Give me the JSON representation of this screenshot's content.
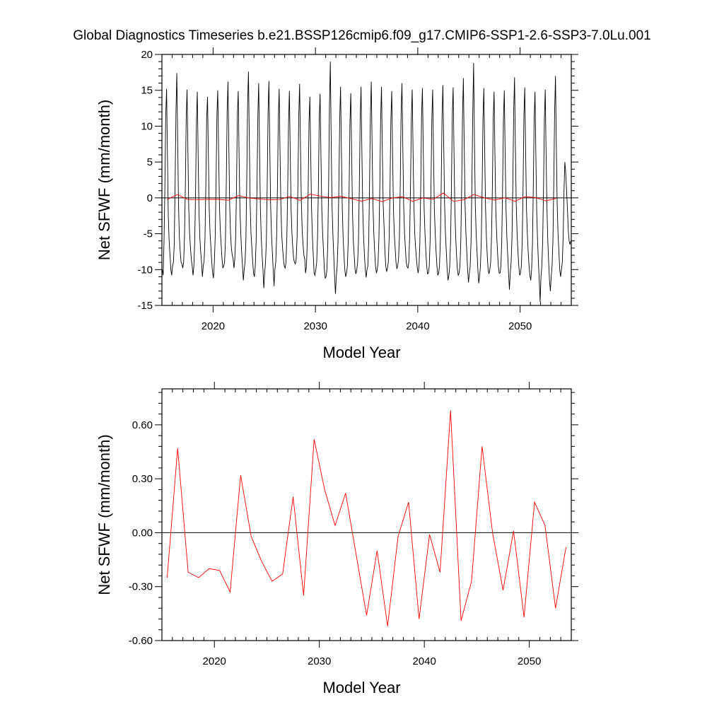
{
  "title": "Global Diagnostics Timeseries b.e21.BSSP126cmip6.f09_g17.CMIP6-SSP1-2.6-SSP3-7.0Lu.001",
  "colors": {
    "monthly": "#000000",
    "annual": "#ff0000",
    "zero_line": "#000000"
  },
  "chart_data": [
    {
      "type": "line",
      "xlabel": "Model Year",
      "ylabel": "Net SFWF (mm/month)",
      "xlim": [
        2015,
        2055
      ],
      "ylim": [
        -15,
        20
      ],
      "x_ticks": [
        2020,
        2030,
        2040,
        2050
      ],
      "x_tick_labels": [
        "2020",
        "2030",
        "2040",
        "2050"
      ],
      "y_ticks": [
        -15,
        -10,
        -5,
        0,
        5,
        10,
        15,
        20
      ],
      "y_tick_labels": [
        "-15",
        "-10",
        "-5",
        "0",
        "5",
        "10",
        "15",
        "20"
      ],
      "grid": false,
      "reference_line_y": 0,
      "series": [
        {
          "style": "monthly",
          "x_start": 2015.04,
          "x_step": 0.083333,
          "values": [
            -10.0,
            -10.8,
            -6.0,
            1.5,
            11.5,
            15.2,
            6.0,
            -2.5,
            -6.0,
            -8.0,
            -10.0,
            -10.8,
            -9.5,
            -9.0,
            -6.5,
            2.0,
            12.0,
            17.4,
            8.0,
            -1.0,
            -5.5,
            -7.5,
            -9.0,
            -9.2,
            -9.8,
            -9.0,
            -5.5,
            1.5,
            11.0,
            15.1,
            6.5,
            -1.5,
            -5.0,
            -7.0,
            -8.5,
            -9.5,
            -10.8,
            -9.5,
            -6.0,
            1.0,
            10.5,
            14.8,
            6.0,
            -2.0,
            -5.5,
            -7.5,
            -9.0,
            -11.0,
            -9.5,
            -8.8,
            -5.8,
            1.5,
            11.0,
            14.1,
            6.0,
            -1.5,
            -5.0,
            -7.0,
            -9.0,
            -10.5,
            -11.2,
            -9.0,
            -5.5,
            2.0,
            11.5,
            15.0,
            6.5,
            -1.0,
            -4.5,
            -6.5,
            -8.5,
            -9.8,
            -9.5,
            -9.0,
            -6.0,
            2.0,
            12.0,
            16.2,
            7.0,
            -1.0,
            -5.0,
            -7.0,
            -8.0,
            -8.5,
            -9.8,
            -8.5,
            -5.5,
            1.5,
            11.5,
            14.9,
            6.0,
            -1.5,
            -5.0,
            -7.5,
            -9.5,
            -11.5,
            -10.0,
            -9.0,
            -6.0,
            2.5,
            13.0,
            17.6,
            8.0,
            -1.0,
            -5.0,
            -7.0,
            -9.0,
            -10.5,
            -11.0,
            -9.5,
            -6.0,
            1.5,
            11.5,
            16.0,
            7.0,
            -1.5,
            -5.5,
            -8.0,
            -10.0,
            -12.6,
            -10.5,
            -9.0,
            -6.0,
            2.0,
            12.0,
            16.3,
            7.0,
            -1.0,
            -5.0,
            -7.5,
            -10.0,
            -12.3,
            -10.0,
            -9.0,
            -5.5,
            1.5,
            11.0,
            15.2,
            6.5,
            -1.0,
            -5.0,
            -7.0,
            -8.5,
            -9.5,
            -9.8,
            -9.0,
            -5.5,
            1.0,
            10.5,
            14.9,
            6.0,
            -1.5,
            -5.0,
            -7.0,
            -8.5,
            -9.0,
            -9.2,
            -8.5,
            -5.5,
            2.0,
            11.5,
            15.9,
            7.0,
            -0.5,
            -4.5,
            -6.5,
            -8.0,
            -8.5,
            -10.5,
            -9.5,
            -6.0,
            1.0,
            10.5,
            14.1,
            6.0,
            -1.5,
            -5.5,
            -8.0,
            -10.5,
            -10.8,
            -10.0,
            -9.0,
            -5.5,
            1.5,
            11.0,
            14.5,
            6.0,
            -1.5,
            -5.0,
            -7.5,
            -10.0,
            -11.2,
            -11.0,
            -10.0,
            -6.5,
            2.0,
            13.0,
            19.0,
            8.0,
            -1.0,
            -5.0,
            -8.0,
            -11.0,
            -13.4,
            -11.0,
            -9.5,
            -6.0,
            1.5,
            11.0,
            15.5,
            6.5,
            -1.5,
            -5.5,
            -8.0,
            -10.0,
            -11.0,
            -10.5,
            -9.5,
            -6.0,
            1.0,
            10.5,
            14.6,
            6.0,
            -2.0,
            -6.0,
            -8.0,
            -10.0,
            -10.6,
            -10.0,
            -9.0,
            -6.0,
            1.5,
            11.0,
            15.5,
            6.5,
            -1.5,
            -5.5,
            -8.0,
            -10.0,
            -11.1,
            -10.0,
            -9.5,
            -6.0,
            2.0,
            11.5,
            16.2,
            7.0,
            -1.0,
            -5.0,
            -7.5,
            -9.5,
            -10.5,
            -10.0,
            -9.0,
            -5.5,
            1.5,
            11.0,
            15.5,
            6.5,
            -1.0,
            -4.0,
            -7.5,
            -9.5,
            -10.3,
            -9.8,
            -9.0,
            -5.5,
            1.5,
            11.0,
            14.9,
            6.0,
            -1.5,
            -5.0,
            -7.0,
            -9.0,
            -9.9,
            -9.5,
            -8.5,
            -5.5,
            2.0,
            12.0,
            16.0,
            7.0,
            -1.0,
            -5.0,
            -7.0,
            -9.0,
            -9.6,
            -9.8,
            -9.0,
            -5.5,
            1.5,
            11.0,
            15.1,
            6.5,
            -1.0,
            -5.0,
            -7.0,
            -8.5,
            -9.8,
            -10.5,
            -9.5,
            -6.0,
            1.5,
            11.5,
            15.3,
            6.5,
            -1.5,
            -5.0,
            -7.5,
            -9.5,
            -10.6,
            -10.5,
            -9.5,
            -6.0,
            1.5,
            11.0,
            15.1,
            6.0,
            -1.5,
            -5.0,
            -7.5,
            -9.5,
            -10.8,
            -10.5,
            -9.5,
            -6.0,
            1.5,
            11.5,
            15.7,
            7.0,
            -1.0,
            -5.0,
            -7.5,
            -10.0,
            -11.5,
            -10.8,
            -9.5,
            -6.0,
            1.5,
            11.5,
            15.4,
            6.5,
            -1.5,
            -5.5,
            -8.0,
            -10.0,
            -10.8,
            -10.5,
            -9.5,
            -6.0,
            1.5,
            11.5,
            16.7,
            7.0,
            -1.0,
            -5.0,
            -7.5,
            -10.0,
            -11.8,
            -10.5,
            -9.5,
            -6.0,
            2.0,
            12.0,
            18.8,
            8.0,
            -1.0,
            -5.0,
            -7.5,
            -10.0,
            -11.9,
            -11.0,
            -9.5,
            -6.0,
            1.5,
            11.0,
            15.3,
            6.5,
            -1.5,
            -5.5,
            -8.0,
            -10.0,
            -10.6,
            -10.0,
            -9.0,
            -5.5,
            1.5,
            11.0,
            14.8,
            6.0,
            -1.5,
            -5.0,
            -7.5,
            -9.5,
            -10.5,
            -10.5,
            -9.5,
            -6.0,
            1.5,
            11.0,
            15.0,
            6.0,
            -1.5,
            -5.5,
            -8.0,
            -10.5,
            -12.8,
            -10.5,
            -9.0,
            -5.5,
            2.0,
            12.0,
            16.8,
            7.0,
            -1.0,
            -5.0,
            -7.5,
            -9.5,
            -10.8,
            -10.5,
            -9.5,
            -6.0,
            1.5,
            11.5,
            15.4,
            6.5,
            -1.5,
            -5.0,
            -7.5,
            -9.5,
            -10.8,
            -11.5,
            -10.0,
            -6.5,
            1.5,
            11.0,
            14.8,
            6.0,
            -2.0,
            -6.0,
            -9.0,
            -11.5,
            -14.5,
            -11.0,
            -9.5,
            -6.0,
            1.5,
            11.0,
            15.1,
            6.0,
            -1.5,
            -6.0,
            -9.0,
            -11.5,
            -13.0,
            -11.0,
            -9.5,
            -6.0,
            2.0,
            12.0,
            17.0,
            7.0,
            -1.0,
            -5.0,
            -7.5,
            -10.0,
            -11.0,
            -10.0,
            -9.0,
            -5.5,
            1.0,
            5.0,
            3.5,
            1.0,
            -1.5,
            -4.5,
            -6.0,
            -6.5,
            -6.0
          ]
        },
        {
          "style": "annual",
          "x": [
            2015.5,
            2016.5,
            2017.5,
            2018.5,
            2019.5,
            2020.5,
            2021.5,
            2022.5,
            2023.5,
            2024.5,
            2025.5,
            2026.5,
            2027.5,
            2028.5,
            2029.5,
            2030.5,
            2031.5,
            2032.5,
            2033.5,
            2034.5,
            2035.5,
            2036.5,
            2037.5,
            2038.5,
            2039.5,
            2040.5,
            2041.5,
            2042.5,
            2043.5,
            2044.5,
            2045.5,
            2046.5,
            2047.5,
            2048.5,
            2049.5,
            2050.5,
            2051.5,
            2052.5,
            2053.5
          ],
          "values": [
            -0.25,
            0.47,
            -0.22,
            -0.25,
            -0.2,
            -0.21,
            -0.33,
            0.32,
            -0.02,
            -0.16,
            -0.27,
            -0.23,
            0.2,
            -0.35,
            0.52,
            0.24,
            0.04,
            0.22,
            -0.12,
            -0.46,
            -0.1,
            -0.52,
            -0.02,
            0.17,
            -0.48,
            -0.01,
            -0.22,
            0.68,
            -0.49,
            -0.27,
            0.48,
            0.0,
            -0.32,
            0.01,
            -0.47,
            0.17,
            0.04,
            -0.42,
            -0.08
          ]
        }
      ]
    },
    {
      "type": "line",
      "xlabel": "Model Year",
      "ylabel": "Net SFWF (mm/month)",
      "xlim": [
        2015,
        2054
      ],
      "ylim": [
        -0.6,
        0.8
      ],
      "x_ticks": [
        2020,
        2030,
        2040,
        2050
      ],
      "x_tick_labels": [
        "2020",
        "2030",
        "2040",
        "2050"
      ],
      "y_ticks": [
        -0.6,
        -0.3,
        0.0,
        0.3,
        0.6
      ],
      "y_tick_labels": [
        "-0.60",
        "-0.30",
        "0.00",
        "0.30",
        "0.60"
      ],
      "grid": false,
      "reference_line_y": 0,
      "series": [
        {
          "style": "annual",
          "x": [
            2015.5,
            2016.5,
            2017.5,
            2018.5,
            2019.5,
            2020.5,
            2021.5,
            2022.5,
            2023.5,
            2024.5,
            2025.5,
            2026.5,
            2027.5,
            2028.5,
            2029.5,
            2030.5,
            2031.5,
            2032.5,
            2033.5,
            2034.5,
            2035.5,
            2036.5,
            2037.5,
            2038.5,
            2039.5,
            2040.5,
            2041.5,
            2042.5,
            2043.5,
            2044.5,
            2045.5,
            2046.5,
            2047.5,
            2048.5,
            2049.5,
            2050.5,
            2051.5,
            2052.5,
            2053.5
          ],
          "values": [
            -0.25,
            0.47,
            -0.22,
            -0.25,
            -0.2,
            -0.21,
            -0.33,
            0.32,
            -0.02,
            -0.16,
            -0.27,
            -0.23,
            0.2,
            -0.35,
            0.52,
            0.24,
            0.04,
            0.22,
            -0.12,
            -0.46,
            -0.1,
            -0.52,
            -0.02,
            0.17,
            -0.48,
            -0.01,
            -0.22,
            0.68,
            -0.49,
            -0.27,
            0.48,
            0.0,
            -0.32,
            0.01,
            -0.47,
            0.17,
            0.04,
            -0.42,
            -0.08
          ]
        }
      ]
    }
  ]
}
